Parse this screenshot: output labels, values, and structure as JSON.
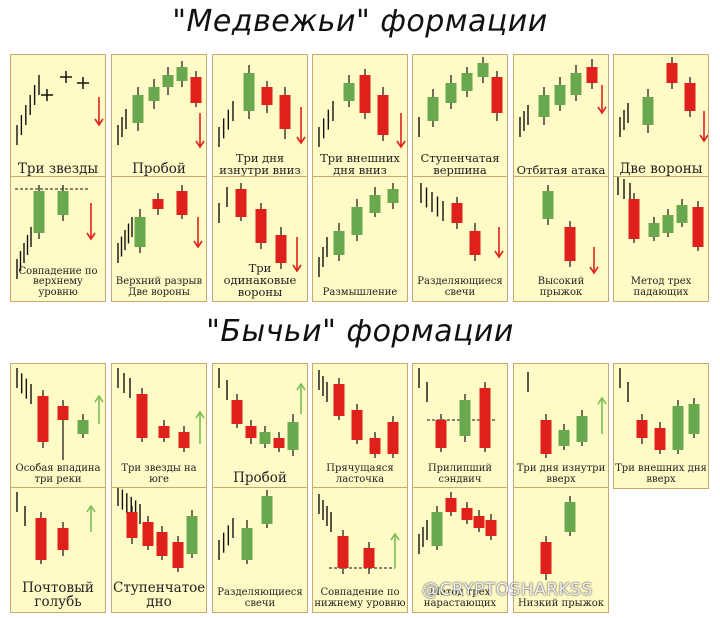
{
  "bearish": {
    "title": "\"Медвежьи\" формации",
    "patterns": [
      {
        "label": "Три звезды"
      },
      {
        "label": "Пробой"
      },
      {
        "label": "Три дня изнутри вниз"
      },
      {
        "label": "Три внешних дня вниз"
      },
      {
        "label": "Ступенчатая вершина"
      },
      {
        "label": "Отбитая атака"
      },
      {
        "label": "Две вороны"
      },
      {
        "label": "Совпадение по верхнему уровню"
      },
      {
        "label": "Верхний разрыв Две вороны"
      },
      {
        "label": "Три одинаковые вороны"
      },
      {
        "label": "Размышление"
      },
      {
        "label": "Разделяющиеся свечи"
      },
      {
        "label": "Высокий прыжок"
      },
      {
        "label": "Метод трех падающих"
      }
    ]
  },
  "bullish": {
    "title": "\"Бычьи\" формации",
    "patterns": [
      {
        "label": "Особая впадина три реки"
      },
      {
        "label": "Три звезды на юге"
      },
      {
        "label": "Пробой"
      },
      {
        "label": "Прячущаяся ласточка"
      },
      {
        "label": "Прилипший сэндвич"
      },
      {
        "label": "Три дня изнутри вверх"
      },
      {
        "label": "Три внешних дня вверх"
      },
      {
        "label": "Почтовый голубь"
      },
      {
        "label": "Ступенчатое дно"
      },
      {
        "label": "Разделяющиеся свечи"
      },
      {
        "label": "Совпадение по нижнему уровню"
      },
      {
        "label": "Метод трех нарастающих"
      },
      {
        "label": "Низкий прыжок"
      }
    ]
  },
  "watermark": "@CRYPTOSHARKSS",
  "colors": {
    "card_bg": "#fffbc6",
    "card_border": "#c9a96e",
    "bull_candle": "#6aa84f",
    "bear_candle": "#e0201b",
    "arrow_bear": "#e0201b",
    "arrow_bull": "#7cbf5a"
  }
}
